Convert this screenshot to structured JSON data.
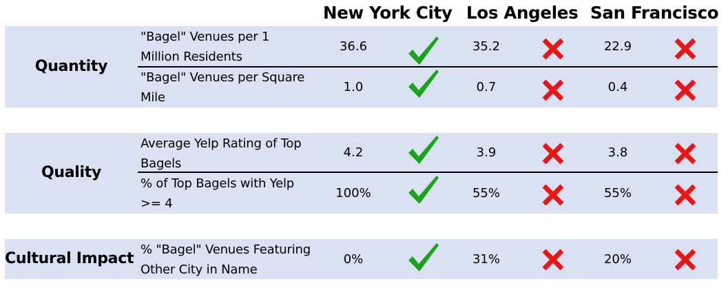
{
  "columns": [
    "New York City",
    "Los Angeles",
    "San Francisco"
  ],
  "colors": {
    "band": "#dae1f3",
    "check": "#1aa41a",
    "cross": "#e81717"
  },
  "sections": [
    {
      "group": "Quantity",
      "rows": [
        {
          "metric": [
            "\"Bagel\" Venues per 1",
            "Million Residents"
          ],
          "values": [
            "36.6",
            "35.2",
            "22.9"
          ],
          "marks": [
            "check-icon",
            "cross-icon",
            "cross-icon"
          ]
        },
        {
          "metric": [
            "\"Bagel\" Venues per Square",
            "Mile"
          ],
          "values": [
            "1.0",
            "0.7",
            "0.4"
          ],
          "marks": [
            "check-icon",
            "cross-icon",
            "cross-icon"
          ]
        }
      ]
    },
    {
      "group": "Quality",
      "rows": [
        {
          "metric": [
            "Average Yelp Rating of Top",
            "Bagels"
          ],
          "values": [
            "4.2",
            "3.9",
            "3.8"
          ],
          "marks": [
            "check-icon",
            "cross-icon",
            "cross-icon"
          ]
        },
        {
          "metric": [
            "% of Top Bagels with Yelp",
            ">= 4"
          ],
          "values": [
            "100%",
            "55%",
            "55%"
          ],
          "marks": [
            "check-icon",
            "cross-icon",
            "cross-icon"
          ]
        }
      ]
    },
    {
      "group": "Cultural Impact",
      "rows": [
        {
          "metric": [
            "% \"Bagel\" Venues Featuring",
            "Other City in Name"
          ],
          "values": [
            "0%",
            "31%",
            "20%"
          ],
          "marks": [
            "check-icon",
            "cross-icon",
            "cross-icon"
          ]
        }
      ]
    }
  ]
}
